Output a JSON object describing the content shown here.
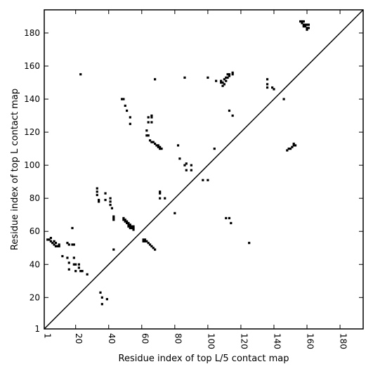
{
  "chart_data": {
    "type": "scatter",
    "xlabel": "Residue index of top L/5 contact map",
    "ylabel": "Residue index of top L contact map",
    "xlim": [
      1,
      194
    ],
    "ylim": [
      1,
      194
    ],
    "x_ticks": [
      1,
      20,
      40,
      60,
      80,
      100,
      120,
      140,
      160,
      180
    ],
    "y_ticks": [
      1,
      20,
      40,
      60,
      80,
      100,
      120,
      140,
      160,
      180
    ],
    "diagonal": {
      "from": [
        1,
        1
      ],
      "to": [
        194,
        194
      ]
    },
    "marker": "square",
    "color": "#000000",
    "grid": false,
    "series": [
      {
        "values": [
          [
            3,
            55
          ],
          [
            4,
            55
          ],
          [
            5,
            56
          ],
          [
            5,
            54
          ],
          [
            6,
            53
          ],
          [
            7,
            54
          ],
          [
            7,
            52
          ],
          [
            8,
            53
          ],
          [
            8,
            51
          ],
          [
            9,
            51
          ],
          [
            10,
            52
          ],
          [
            10,
            51
          ],
          [
            12,
            45
          ],
          [
            15,
            44
          ],
          [
            15,
            53
          ],
          [
            16,
            52
          ],
          [
            16,
            41
          ],
          [
            16,
            37
          ],
          [
            18,
            62
          ],
          [
            18,
            52
          ],
          [
            19,
            52
          ],
          [
            19,
            44
          ],
          [
            19,
            40
          ],
          [
            20,
            40
          ],
          [
            20,
            36
          ],
          [
            22,
            40
          ],
          [
            22,
            38
          ],
          [
            23,
            36
          ],
          [
            24,
            36
          ],
          [
            23,
            155
          ],
          [
            27,
            34
          ],
          [
            33,
            86
          ],
          [
            33,
            84
          ],
          [
            33,
            82
          ],
          [
            34,
            79
          ],
          [
            34,
            78
          ],
          [
            35,
            23
          ],
          [
            36,
            20
          ],
          [
            36,
            16
          ],
          [
            38,
            79
          ],
          [
            38,
            83
          ],
          [
            39,
            19
          ],
          [
            41,
            80
          ],
          [
            41,
            78
          ],
          [
            41,
            76
          ],
          [
            42,
            74
          ],
          [
            43,
            69
          ],
          [
            43,
            68
          ],
          [
            43,
            67
          ],
          [
            43,
            49
          ],
          [
            48,
            140
          ],
          [
            49,
            140
          ],
          [
            49,
            68
          ],
          [
            49,
            67
          ],
          [
            50,
            136
          ],
          [
            50,
            67
          ],
          [
            50,
            66
          ],
          [
            51,
            133
          ],
          [
            51,
            66
          ],
          [
            51,
            65
          ],
          [
            52,
            65
          ],
          [
            52,
            64
          ],
          [
            52,
            63
          ],
          [
            53,
            64
          ],
          [
            53,
            63
          ],
          [
            53,
            62
          ],
          [
            53,
            129
          ],
          [
            53,
            125
          ],
          [
            54,
            63
          ],
          [
            54,
            62
          ],
          [
            55,
            63
          ],
          [
            55,
            62
          ],
          [
            55,
            61
          ],
          [
            61,
            55
          ],
          [
            61,
            54
          ],
          [
            62,
            55
          ],
          [
            62,
            54
          ],
          [
            63,
            54
          ],
          [
            63,
            121
          ],
          [
            63,
            118
          ],
          [
            64,
            53
          ],
          [
            64,
            118
          ],
          [
            64,
            126
          ],
          [
            64,
            129
          ],
          [
            65,
            52
          ],
          [
            65,
            115
          ],
          [
            66,
            51
          ],
          [
            66,
            114
          ],
          [
            66,
            126
          ],
          [
            66,
            129
          ],
          [
            66,
            130
          ],
          [
            67,
            50
          ],
          [
            67,
            114
          ],
          [
            68,
            49
          ],
          [
            68,
            113
          ],
          [
            68,
            152
          ],
          [
            69,
            112
          ],
          [
            70,
            111
          ],
          [
            70,
            112
          ],
          [
            71,
            110
          ],
          [
            71,
            111
          ],
          [
            71,
            84
          ],
          [
            71,
            83
          ],
          [
            71,
            80
          ],
          [
            72,
            110
          ],
          [
            74,
            80
          ],
          [
            80,
            71
          ],
          [
            82,
            112
          ],
          [
            83,
            104
          ],
          [
            86,
            100
          ],
          [
            86,
            153
          ],
          [
            87,
            101
          ],
          [
            87,
            97
          ],
          [
            90,
            100
          ],
          [
            90,
            97
          ],
          [
            97,
            91
          ],
          [
            100,
            91
          ],
          [
            100,
            153
          ],
          [
            104,
            110
          ],
          [
            105,
            151
          ],
          [
            108,
            151
          ],
          [
            108,
            150
          ],
          [
            109,
            150
          ],
          [
            109,
            148
          ],
          [
            110,
            152
          ],
          [
            110,
            149
          ],
          [
            111,
            153
          ],
          [
            111,
            151
          ],
          [
            111,
            68
          ],
          [
            112,
            155
          ],
          [
            112,
            153
          ],
          [
            113,
            155
          ],
          [
            113,
            154
          ],
          [
            113,
            133
          ],
          [
            113,
            68
          ],
          [
            114,
            65
          ],
          [
            115,
            155
          ],
          [
            115,
            156
          ],
          [
            115,
            130
          ],
          [
            125,
            53
          ],
          [
            136,
            152
          ],
          [
            136,
            149
          ],
          [
            136,
            147
          ],
          [
            139,
            147
          ],
          [
            140,
            146
          ],
          [
            146,
            140
          ],
          [
            148,
            109
          ],
          [
            149,
            110
          ],
          [
            150,
            110
          ],
          [
            151,
            111
          ],
          [
            152,
            112
          ],
          [
            152,
            113
          ],
          [
            153,
            112
          ],
          [
            156,
            187
          ],
          [
            157,
            187
          ],
          [
            157,
            186
          ],
          [
            158,
            187
          ],
          [
            158,
            185
          ],
          [
            158,
            184
          ],
          [
            159,
            185
          ],
          [
            159,
            184
          ],
          [
            160,
            185
          ],
          [
            160,
            183
          ],
          [
            160,
            182
          ],
          [
            161,
            185
          ],
          [
            161,
            183
          ]
        ]
      }
    ]
  }
}
